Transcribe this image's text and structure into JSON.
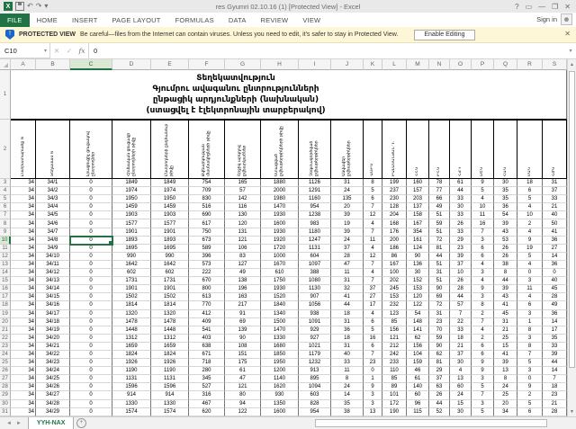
{
  "titlebar": {
    "title": "res Gyumri 02.10.16 (1)  [Protected View] - Excel",
    "help": "?",
    "ribbon_opts": "▭",
    "minimize": "—",
    "restore": "❐",
    "close": "✕",
    "undo": "↶",
    "redo": "↷"
  },
  "ribbon": {
    "tabs": [
      "FILE",
      "HOME",
      "INSERT",
      "PAGE LAYOUT",
      "FORMULAS",
      "DATA",
      "REVIEW",
      "VIEW"
    ],
    "active_tab": "FILE",
    "signin_label": "Sign in",
    "accent_color": "#217346"
  },
  "message_bar": {
    "label": "PROTECTED VIEW",
    "text": "Be careful—files from the Internet can contain viruses. Unless you need to edit, it's safer to stay in Protected View.",
    "button_label": "Enable Editing",
    "close_glyph": "✕",
    "bg_color": "#fdf6d7"
  },
  "formula_bar": {
    "name_box": "C10",
    "cancel_glyph": "✕",
    "enter_glyph": "✓",
    "fx_glyph": "fx",
    "value": "0"
  },
  "sheet": {
    "col_letters": [
      "A",
      "B",
      "C",
      "D",
      "E",
      "F",
      "G",
      "H",
      "I",
      "J",
      "K",
      "L",
      "M",
      "N",
      "O",
      "P",
      "Q",
      "R",
      "S"
    ],
    "selected": {
      "cell": "C10",
      "row": 10,
      "col": "C"
    },
    "title_lines": [
      "Տեղեկատվություն",
      "Գյումրու ավագանու ընտրությունների",
      "ընթացիկ արդյունքների (նախնական)",
      "(ստացվել է էլեկտրոնային տարբերակով)"
    ],
    "headers": [
      "Ընտրատարածք N",
      "Տեղամաս N",
      "Լրացուցիչ ցուցակով ընտրողներ",
      "Հիմնական ցուցակի ընտրողների թիվը",
      "Ընտրողների ընդհանուր թիվը",
      "Քվեարկության մասնակիցների թիվը",
      "Շրջիկ արկղով քվեարկածներ",
      "Ստացված քվեաթերթիկների թիվը",
      "Չօգտագործված քվեաթերթիկներ",
      "Անվավեր քվեաթերթիկներ",
      "ԱՄԲԿ",
      "ԲԱԼԱՍԱՆՅԱՆ Դ.",
      "ՀՀԿ",
      "ԲՀԿ",
      "ՀՅԴ",
      "ՕԵԿ",
      "ՀԱԿ",
      "ՄԱԿ",
      "ՀԺԿ"
    ],
    "rows": [
      [
        "34",
        "34/1",
        "0",
        "1849",
        "1849",
        "754",
        "165",
        "1880",
        "1126",
        "31",
        "8",
        "199",
        "160",
        "78",
        "61",
        "9",
        "30",
        "18",
        "31"
      ],
      [
        "34",
        "34/2",
        "0",
        "1974",
        "1974",
        "709",
        "57",
        "2000",
        "1291",
        "24",
        "5",
        "237",
        "157",
        "77",
        "44",
        "5",
        "35",
        "6",
        "37"
      ],
      [
        "34",
        "34/3",
        "0",
        "1950",
        "1950",
        "830",
        "142",
        "1980",
        "1160",
        "135",
        "6",
        "230",
        "203",
        "66",
        "33",
        "4",
        "35",
        "5",
        "33"
      ],
      [
        "34",
        "34/4",
        "0",
        "1459",
        "1459",
        "516",
        "116",
        "1470",
        "954",
        "20",
        "7",
        "128",
        "137",
        "49",
        "30",
        "10",
        "36",
        "4",
        "21"
      ],
      [
        "34",
        "34/5",
        "0",
        "1903",
        "1903",
        "690",
        "130",
        "1930",
        "1238",
        "39",
        "12",
        "204",
        "158",
        "51",
        "33",
        "11",
        "54",
        "10",
        "40"
      ],
      [
        "34",
        "34/6",
        "0",
        "1577",
        "1577",
        "617",
        "120",
        "1600",
        "983",
        "19",
        "4",
        "168",
        "167",
        "59",
        "26",
        "16",
        "39",
        "2",
        "50"
      ],
      [
        "34",
        "34/7",
        "0",
        "1901",
        "1901",
        "750",
        "131",
        "1930",
        "1180",
        "39",
        "7",
        "176",
        "354",
        "51",
        "33",
        "7",
        "43",
        "4",
        "41"
      ],
      [
        "34",
        "34/8",
        "0",
        "1893",
        "1893",
        "673",
        "121",
        "1920",
        "1247",
        "24",
        "11",
        "200",
        "161",
        "72",
        "29",
        "3",
        "53",
        "9",
        "36"
      ],
      [
        "34",
        "34/9",
        "0",
        "1695",
        "1695",
        "589",
        "106",
        "1720",
        "1131",
        "37",
        "4",
        "186",
        "124",
        "81",
        "23",
        "6",
        "26",
        "19",
        "27"
      ],
      [
        "34",
        "34/10",
        "0",
        "990",
        "990",
        "396",
        "83",
        "1000",
        "604",
        "28",
        "12",
        "86",
        "90",
        "44",
        "39",
        "6",
        "26",
        "5",
        "14"
      ],
      [
        "34",
        "34/11",
        "0",
        "1642",
        "1642",
        "573",
        "127",
        "1670",
        "1097",
        "47",
        "7",
        "167",
        "136",
        "51",
        "37",
        "4",
        "38",
        "4",
        "36"
      ],
      [
        "34",
        "34/12",
        "0",
        "602",
        "602",
        "222",
        "49",
        "610",
        "388",
        "11",
        "4",
        "100",
        "30",
        "31",
        "10",
        "3",
        "8",
        "0",
        "0"
      ],
      [
        "34",
        "34/13",
        "0",
        "1731",
        "1731",
        "670",
        "138",
        "1750",
        "1080",
        "31",
        "7",
        "202",
        "152",
        "51",
        "26",
        "4",
        "44",
        "3",
        "40"
      ],
      [
        "34",
        "34/14",
        "0",
        "1901",
        "1901",
        "800",
        "196",
        "1930",
        "1130",
        "32",
        "37",
        "245",
        "153",
        "90",
        "28",
        "9",
        "39",
        "11",
        "45"
      ],
      [
        "34",
        "34/15",
        "0",
        "1502",
        "1502",
        "613",
        "163",
        "1520",
        "907",
        "41",
        "27",
        "153",
        "120",
        "69",
        "44",
        "3",
        "43",
        "4",
        "28"
      ],
      [
        "34",
        "34/16",
        "0",
        "1814",
        "1814",
        "770",
        "217",
        "1840",
        "1056",
        "44",
        "17",
        "232",
        "122",
        "72",
        "57",
        "8",
        "41",
        "6",
        "49"
      ],
      [
        "34",
        "34/17",
        "0",
        "1320",
        "1320",
        "412",
        "91",
        "1340",
        "938",
        "18",
        "4",
        "123",
        "54",
        "31",
        "7",
        "2",
        "45",
        "3",
        "36"
      ],
      [
        "34",
        "34/18",
        "0",
        "1478",
        "1478",
        "409",
        "69",
        "1500",
        "1091",
        "31",
        "6",
        "85",
        "148",
        "23",
        "22",
        "7",
        "31",
        "1",
        "14"
      ],
      [
        "34",
        "34/19",
        "0",
        "1448",
        "1448",
        "541",
        "139",
        "1470",
        "929",
        "36",
        "5",
        "156",
        "141",
        "70",
        "33",
        "4",
        "21",
        "8",
        "17"
      ],
      [
        "34",
        "34/20",
        "0",
        "1312",
        "1312",
        "403",
        "90",
        "1330",
        "927",
        "18",
        "16",
        "121",
        "62",
        "59",
        "18",
        "2",
        "25",
        "3",
        "35"
      ],
      [
        "34",
        "34/21",
        "0",
        "1659",
        "1659",
        "638",
        "108",
        "1680",
        "1021",
        "31",
        "6",
        "212",
        "156",
        "90",
        "21",
        "6",
        "15",
        "8",
        "33"
      ],
      [
        "34",
        "34/22",
        "0",
        "1824",
        "1824",
        "671",
        "151",
        "1850",
        "1179",
        "40",
        "7",
        "242",
        "104",
        "62",
        "37",
        "6",
        "41",
        "7",
        "39"
      ],
      [
        "34",
        "34/23",
        "0",
        "1926",
        "1926",
        "718",
        "175",
        "1950",
        "1232",
        "33",
        "23",
        "233",
        "159",
        "81",
        "30",
        "9",
        "39",
        "5",
        "44"
      ],
      [
        "34",
        "34/24",
        "0",
        "1190",
        "1190",
        "280",
        "61",
        "1200",
        "913",
        "11",
        "0",
        "110",
        "46",
        "29",
        "4",
        "9",
        "13",
        "3",
        "14"
      ],
      [
        "34",
        "34/25",
        "0",
        "1131",
        "1131",
        "345",
        "47",
        "1140",
        "895",
        "8",
        "1",
        "85",
        "61",
        "37",
        "13",
        "3",
        "8",
        "0",
        "7"
      ],
      [
        "34",
        "34/26",
        "0",
        "1596",
        "1596",
        "527",
        "121",
        "1620",
        "1094",
        "24",
        "9",
        "89",
        "140",
        "63",
        "60",
        "5",
        "24",
        "9",
        "18"
      ],
      [
        "34",
        "34/27",
        "0",
        "914",
        "914",
        "316",
        "80",
        "930",
        "603",
        "14",
        "3",
        "101",
        "60",
        "26",
        "24",
        "7",
        "25",
        "2",
        "23"
      ],
      [
        "34",
        "34/28",
        "0",
        "1330",
        "1330",
        "467",
        "94",
        "1350",
        "828",
        "35",
        "3",
        "172",
        "96",
        "44",
        "15",
        "3",
        "20",
        "5",
        "21"
      ],
      [
        "34",
        "34/29",
        "0",
        "1574",
        "1574",
        "620",
        "122",
        "1600",
        "954",
        "38",
        "13",
        "190",
        "115",
        "52",
        "30",
        "5",
        "34",
        "6",
        "28"
      ]
    ]
  },
  "tab_bar": {
    "sheet_tab": "YYH-NAX",
    "add_sheet_glyph": "+",
    "nav_left": "◄",
    "nav_right": "►"
  }
}
